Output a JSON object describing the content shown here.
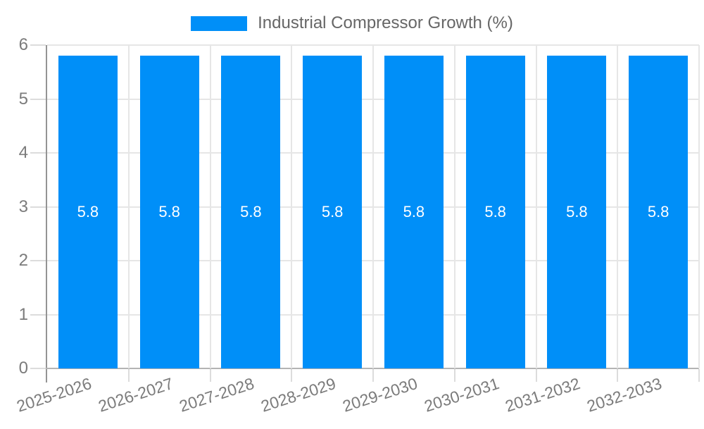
{
  "chart_data": {
    "type": "bar",
    "title": "Industrial Compressor Growth (%)",
    "categories": [
      "2025-2026",
      "2026-2027",
      "2027-2028",
      "2028-2029",
      "2029-2030",
      "2030-2031",
      "2031-2032",
      "2032-2033"
    ],
    "series": [
      {
        "name": "Industrial Compressor Growth (%)",
        "values": [
          5.8,
          5.8,
          5.8,
          5.8,
          5.8,
          5.8,
          5.8,
          5.8
        ]
      }
    ],
    "value_labels": [
      "5.8",
      "5.8",
      "5.8",
      "5.8",
      "5.8",
      "5.8",
      "5.8",
      "5.8"
    ],
    "xlabel": "",
    "ylabel": "",
    "ylim": [
      0,
      6
    ],
    "yticks": [
      0,
      1,
      2,
      3,
      4,
      5,
      6
    ],
    "grid": true,
    "legend_position": "top-center",
    "x_label_rotation_deg": -18
  },
  "colors": {
    "background": "#FFFFFF",
    "bar": "#008FF8",
    "grid": "#E6E6E6",
    "tick": "#DCDCDC",
    "axis": "#949494",
    "baseline": "#B3B3B3",
    "axis_text": "#7B7B7B",
    "legend_text": "#666666",
    "value_text": "#FFFFFF"
  }
}
